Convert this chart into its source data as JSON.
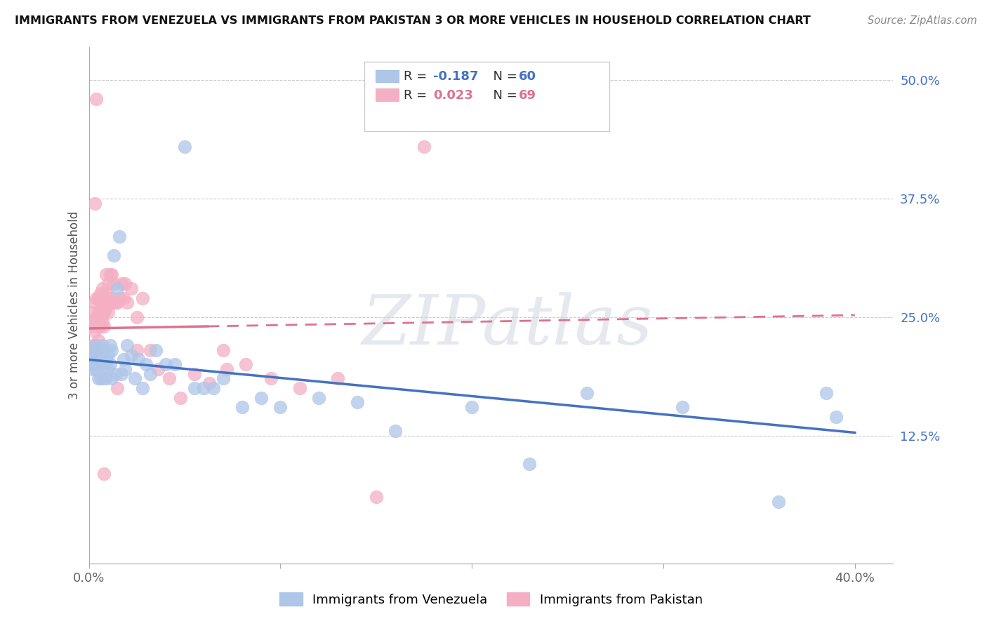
{
  "title": "IMMIGRANTS FROM VENEZUELA VS IMMIGRANTS FROM PAKISTAN 3 OR MORE VEHICLES IN HOUSEHOLD CORRELATION CHART",
  "source": "Source: ZipAtlas.com",
  "ylabel": "3 or more Vehicles in Household",
  "right_yticks": [
    "50.0%",
    "37.5%",
    "25.0%",
    "12.5%"
  ],
  "right_ytick_vals": [
    0.5,
    0.375,
    0.25,
    0.125
  ],
  "xlim": [
    0.0,
    0.42
  ],
  "ylim": [
    -0.01,
    0.535
  ],
  "legend_r_venezuela": "-0.187",
  "legend_n_venezuela": "60",
  "legend_r_pakistan": "0.023",
  "legend_n_pakistan": "69",
  "color_venezuela": "#aec6e8",
  "color_pakistan": "#f4afc3",
  "line_color_venezuela": "#4472c4",
  "line_color_pakistan": "#e07090",
  "watermark": "ZIPatlas",
  "ven_line_x0": 0.0,
  "ven_line_x1": 0.4,
  "ven_line_y0": 0.205,
  "ven_line_y1": 0.128,
  "pak_line_x0": 0.0,
  "pak_line_x1": 0.4,
  "pak_line_y0": 0.238,
  "pak_line_y1": 0.252,
  "venezuela_x": [
    0.001,
    0.002,
    0.002,
    0.003,
    0.003,
    0.004,
    0.004,
    0.005,
    0.005,
    0.005,
    0.006,
    0.006,
    0.007,
    0.007,
    0.007,
    0.008,
    0.008,
    0.009,
    0.009,
    0.01,
    0.01,
    0.011,
    0.011,
    0.012,
    0.012,
    0.013,
    0.014,
    0.015,
    0.016,
    0.017,
    0.018,
    0.019,
    0.02,
    0.022,
    0.024,
    0.026,
    0.028,
    0.03,
    0.032,
    0.035,
    0.04,
    0.045,
    0.05,
    0.055,
    0.06,
    0.065,
    0.07,
    0.08,
    0.09,
    0.1,
    0.12,
    0.14,
    0.16,
    0.2,
    0.23,
    0.26,
    0.31,
    0.36,
    0.385,
    0.39
  ],
  "venezuela_y": [
    0.205,
    0.195,
    0.215,
    0.2,
    0.21,
    0.195,
    0.22,
    0.185,
    0.215,
    0.2,
    0.185,
    0.215,
    0.185,
    0.205,
    0.22,
    0.195,
    0.215,
    0.185,
    0.205,
    0.21,
    0.195,
    0.22,
    0.2,
    0.215,
    0.185,
    0.315,
    0.19,
    0.28,
    0.335,
    0.19,
    0.205,
    0.195,
    0.22,
    0.21,
    0.185,
    0.205,
    0.175,
    0.2,
    0.19,
    0.215,
    0.2,
    0.2,
    0.43,
    0.175,
    0.175,
    0.175,
    0.185,
    0.155,
    0.165,
    0.155,
    0.165,
    0.16,
    0.13,
    0.155,
    0.095,
    0.17,
    0.155,
    0.055,
    0.17,
    0.145
  ],
  "pakistan_x": [
    0.001,
    0.001,
    0.002,
    0.002,
    0.002,
    0.003,
    0.003,
    0.003,
    0.004,
    0.004,
    0.004,
    0.005,
    0.005,
    0.005,
    0.005,
    0.006,
    0.006,
    0.006,
    0.006,
    0.007,
    0.007,
    0.007,
    0.007,
    0.008,
    0.008,
    0.008,
    0.009,
    0.009,
    0.009,
    0.009,
    0.01,
    0.01,
    0.01,
    0.011,
    0.011,
    0.012,
    0.012,
    0.013,
    0.013,
    0.014,
    0.015,
    0.016,
    0.017,
    0.018,
    0.019,
    0.02,
    0.022,
    0.025,
    0.028,
    0.032,
    0.036,
    0.042,
    0.048,
    0.055,
    0.063,
    0.072,
    0.082,
    0.095,
    0.11,
    0.13,
    0.15,
    0.175,
    0.2,
    0.025,
    0.015,
    0.008,
    0.004,
    0.003,
    0.07
  ],
  "pakistan_y": [
    0.24,
    0.21,
    0.245,
    0.22,
    0.255,
    0.235,
    0.265,
    0.22,
    0.25,
    0.215,
    0.27,
    0.225,
    0.255,
    0.24,
    0.27,
    0.24,
    0.265,
    0.25,
    0.275,
    0.245,
    0.27,
    0.255,
    0.28,
    0.255,
    0.27,
    0.24,
    0.26,
    0.275,
    0.26,
    0.295,
    0.255,
    0.285,
    0.27,
    0.265,
    0.295,
    0.27,
    0.295,
    0.265,
    0.285,
    0.265,
    0.265,
    0.27,
    0.285,
    0.27,
    0.285,
    0.265,
    0.28,
    0.25,
    0.27,
    0.215,
    0.195,
    0.185,
    0.165,
    0.19,
    0.18,
    0.195,
    0.2,
    0.185,
    0.175,
    0.185,
    0.06,
    0.43,
    0.47,
    0.215,
    0.175,
    0.085,
    0.48,
    0.37,
    0.215
  ]
}
